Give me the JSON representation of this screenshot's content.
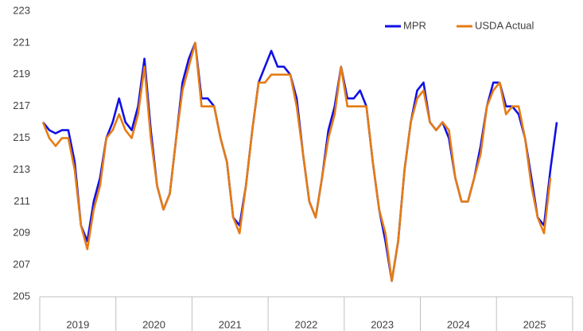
{
  "chart_data": {
    "type": "line",
    "categories": [
      null,
      null,
      null,
      null,
      null,
      "2019",
      null,
      null,
      null,
      null,
      null,
      null,
      null,
      null,
      null,
      null,
      null,
      "2020",
      null,
      null,
      null,
      null,
      null,
      null,
      null,
      null,
      null,
      null,
      null,
      "2021",
      null,
      null,
      null,
      null,
      null,
      null,
      null,
      null,
      null,
      null,
      null,
      "2022",
      null,
      null,
      null,
      null,
      null,
      null,
      null,
      null,
      null,
      null,
      null,
      "2023",
      null,
      null,
      null,
      null,
      null,
      null,
      null,
      null,
      null,
      null,
      null,
      "2024",
      null,
      null,
      null,
      null,
      null,
      null,
      null,
      null,
      null,
      null,
      null,
      "2025",
      null,
      null,
      null,
      null
    ],
    "series": [
      {
        "name": "MPR",
        "color": "#1010e6",
        "values": [
          216,
          215.5,
          215.3,
          215.5,
          215.5,
          213.5,
          209.5,
          208.5,
          211,
          212.5,
          215,
          216,
          217.5,
          216,
          215.5,
          217,
          220,
          215.5,
          212,
          210.5,
          211.5,
          215,
          218.5,
          220,
          221,
          217.5,
          217.5,
          217,
          215,
          213.5,
          210,
          209.5,
          212,
          215.5,
          218.5,
          219.5,
          220.5,
          219.5,
          219.5,
          219,
          217.5,
          214,
          211,
          210,
          212.5,
          215.5,
          217,
          219.5,
          217.5,
          217.5,
          218,
          217,
          213.5,
          210.5,
          208.5,
          206,
          208.5,
          213,
          216,
          218,
          218.5,
          216,
          215.5,
          216,
          215,
          212.5,
          211,
          211,
          212.5,
          214.5,
          217,
          218.5,
          218.5,
          217,
          217,
          216.5,
          215,
          212.5,
          210,
          209.5,
          213,
          216
        ]
      },
      {
        "name": "USDA Actual",
        "color": "#e57c14",
        "values": [
          216,
          215,
          214.5,
          215,
          215,
          213,
          209.5,
          208,
          210.5,
          212,
          215,
          215.5,
          216.5,
          215.5,
          215,
          216.5,
          219.5,
          215,
          212,
          210.5,
          211.5,
          215,
          218,
          219.5,
          221,
          217,
          217,
          217,
          215,
          213.5,
          210,
          209,
          212,
          215.5,
          218.5,
          218.5,
          219,
          219,
          219,
          219,
          217,
          214,
          211,
          210,
          212.5,
          215,
          216.5,
          219.5,
          217,
          217,
          217,
          217,
          213.5,
          210.5,
          209,
          206,
          208.5,
          213,
          216,
          217.5,
          218,
          216,
          215.5,
          216,
          215.5,
          212.5,
          211,
          211,
          212.5,
          214,
          217,
          218,
          218.5,
          216.5,
          217,
          217,
          215,
          212,
          210,
          209,
          212.5,
          null
        ]
      }
    ],
    "ylim": [
      205,
      223
    ],
    "yticks": [
      205,
      207,
      209,
      211,
      213,
      215,
      217,
      219,
      221,
      223
    ],
    "grid": false,
    "legend": "top-right"
  }
}
